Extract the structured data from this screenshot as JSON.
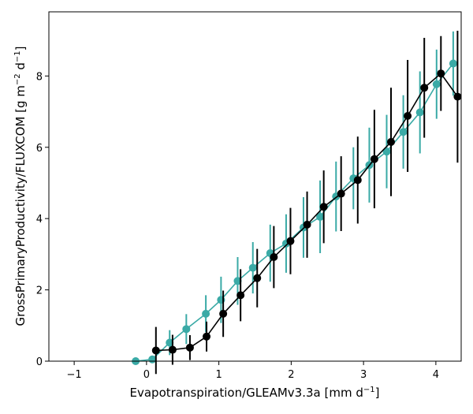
{
  "chart_data": {
    "type": "line",
    "title": "",
    "xlabel_main": "Evapotranspiration/GLEAMv3.3a [mm d",
    "xlabel_sup": "−1",
    "xlabel_end": "]",
    "ylabel_main": "GrossPrimaryProductivity/FLUXCOM [g m",
    "ylabel_sup1": "−2",
    "ylabel_mid": " d",
    "ylabel_sup2": "−1",
    "ylabel_end": "]",
    "xlim": [
      -1.35,
      4.35
    ],
    "ylim": [
      0,
      9.8
    ],
    "xticks": [
      -1,
      0,
      1,
      2,
      3,
      4
    ],
    "xtick_labels": [
      "−1",
      "0",
      "1",
      "2",
      "3",
      "4"
    ],
    "yticks": [
      0,
      2,
      4,
      6,
      8
    ],
    "ytick_labels": [
      "0",
      "2",
      "4",
      "6",
      "8"
    ],
    "grid": false,
    "legend": "none",
    "series": [
      {
        "color": "#3aaaa6",
        "points": [
          {
            "x": -0.15,
            "y": 0.0,
            "err": 0.0
          },
          {
            "x": 0.08,
            "y": 0.05,
            "err": 0.05
          },
          {
            "x": 0.32,
            "y": 0.52,
            "err": 0.35
          },
          {
            "x": 0.55,
            "y": 0.9,
            "err": 0.42
          },
          {
            "x": 0.82,
            "y": 1.33,
            "err": 0.52
          },
          {
            "x": 1.03,
            "y": 1.72,
            "err": 0.65
          },
          {
            "x": 1.26,
            "y": 2.25,
            "err": 0.67
          },
          {
            "x": 1.47,
            "y": 2.62,
            "err": 0.72
          },
          {
            "x": 1.71,
            "y": 3.03,
            "err": 0.8
          },
          {
            "x": 1.93,
            "y": 3.3,
            "err": 0.82
          },
          {
            "x": 2.17,
            "y": 3.75,
            "err": 0.85
          },
          {
            "x": 2.4,
            "y": 4.05,
            "err": 1.02
          },
          {
            "x": 2.62,
            "y": 4.62,
            "err": 0.98
          },
          {
            "x": 2.86,
            "y": 5.13,
            "err": 0.87
          },
          {
            "x": 3.08,
            "y": 5.5,
            "err": 1.05
          },
          {
            "x": 3.32,
            "y": 5.88,
            "err": 1.03
          },
          {
            "x": 3.55,
            "y": 6.43,
            "err": 1.03
          },
          {
            "x": 3.78,
            "y": 6.98,
            "err": 1.15
          },
          {
            "x": 4.01,
            "y": 7.77,
            "err": 0.97
          },
          {
            "x": 4.24,
            "y": 8.35,
            "err": 0.9
          }
        ]
      },
      {
        "color": "#000000",
        "points": [
          {
            "x": 0.13,
            "y": 0.3,
            "err": 0.66
          },
          {
            "x": 0.36,
            "y": 0.32,
            "err": 0.42
          },
          {
            "x": 0.6,
            "y": 0.38,
            "err": 0.35
          },
          {
            "x": 0.83,
            "y": 0.69,
            "err": 0.42
          },
          {
            "x": 1.06,
            "y": 1.33,
            "err": 0.65
          },
          {
            "x": 1.3,
            "y": 1.85,
            "err": 0.73
          },
          {
            "x": 1.53,
            "y": 2.33,
            "err": 0.82
          },
          {
            "x": 1.76,
            "y": 2.92,
            "err": 0.87
          },
          {
            "x": 1.99,
            "y": 3.37,
            "err": 0.93
          },
          {
            "x": 2.22,
            "y": 3.83,
            "err": 0.93
          },
          {
            "x": 2.45,
            "y": 4.33,
            "err": 1.02
          },
          {
            "x": 2.69,
            "y": 4.7,
            "err": 1.05
          },
          {
            "x": 2.92,
            "y": 5.08,
            "err": 1.22
          },
          {
            "x": 3.15,
            "y": 5.67,
            "err": 1.38
          },
          {
            "x": 3.38,
            "y": 6.15,
            "err": 1.52
          },
          {
            "x": 3.61,
            "y": 6.88,
            "err": 1.57
          },
          {
            "x": 3.84,
            "y": 7.67,
            "err": 1.4
          },
          {
            "x": 4.07,
            "y": 8.07,
            "err": 1.05
          },
          {
            "x": 4.3,
            "y": 7.42,
            "err": 1.85
          }
        ]
      }
    ]
  }
}
